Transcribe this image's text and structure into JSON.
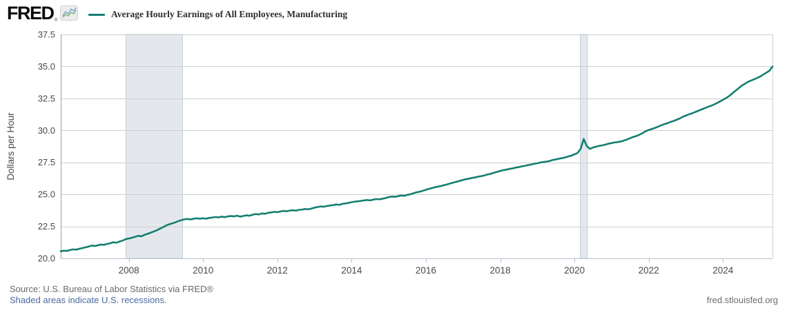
{
  "header": {
    "logo_text": "FRED",
    "registered_mark": "®",
    "legend_label": "Average Hourly Earnings of All Employees, Manufacturing"
  },
  "footer": {
    "source_text": "Source: U.S. Bureau of Labor Statistics via FRED®",
    "recession_note": "Shaded areas indicate U.S. recessions.",
    "site_link": "fred.stlouisfed.org"
  },
  "colors": {
    "line": "#137e70",
    "recession_band_fill": "#e4e8ed",
    "recession_band_edge": "#c7cfd7",
    "gridline": "#cfcfcf",
    "axis": "#b5c0cb",
    "plot_border_left": "#99a1a8",
    "plot_border_right": "#c9d1d8",
    "tick_label": "#45484c",
    "link_blue": "#4d69a1",
    "source_gray": "#66696e"
  },
  "chart_data": {
    "type": "line",
    "title": "Average Hourly Earnings of All Employees, Manufacturing",
    "ylabel": "Dollars per Hour",
    "xlabel": "",
    "legend_entries": [
      "Average Hourly Earnings of All Employees, Manufacturing"
    ],
    "frequency": "monthly",
    "start_month": "2006-03",
    "end_month": "2025-05",
    "x_start_decimal_year": 2006.1667,
    "x_step_decimal_year": 0.0833333,
    "xlim": [
      2006.1667,
      2025.3334
    ],
    "ylim": [
      20.0,
      37.5
    ],
    "y_ticks": [
      "20.0",
      "22.5",
      "25.0",
      "27.5",
      "30.0",
      "32.5",
      "35.0",
      "37.5"
    ],
    "x_ticks": [
      2008,
      2010,
      2012,
      2014,
      2016,
      2018,
      2020,
      2022,
      2024
    ],
    "grid": "horizontal",
    "legend_position": "top-left",
    "recessions": [
      {
        "start": 2007.92,
        "end": 2009.45
      },
      {
        "start": 2020.16,
        "end": 2020.35
      }
    ],
    "values": [
      20.55,
      20.6,
      20.58,
      20.65,
      20.7,
      20.68,
      20.75,
      20.8,
      20.86,
      20.92,
      21.0,
      20.96,
      21.02,
      21.08,
      21.05,
      21.13,
      21.18,
      21.26,
      21.22,
      21.31,
      21.39,
      21.5,
      21.55,
      21.61,
      21.68,
      21.76,
      21.72,
      21.83,
      21.91,
      22.0,
      22.09,
      22.19,
      22.31,
      22.43,
      22.56,
      22.66,
      22.73,
      22.81,
      22.91,
      22.99,
      23.05,
      23.08,
      23.04,
      23.1,
      23.13,
      23.1,
      23.13,
      23.1,
      23.16,
      23.19,
      23.23,
      23.2,
      23.26,
      23.22,
      23.28,
      23.31,
      23.28,
      23.33,
      23.26,
      23.31,
      23.36,
      23.33,
      23.41,
      23.46,
      23.43,
      23.51,
      23.48,
      23.56,
      23.59,
      23.63,
      23.61,
      23.66,
      23.71,
      23.68,
      23.73,
      23.76,
      23.73,
      23.79,
      23.81,
      23.86,
      23.83,
      23.89,
      23.96,
      24.01,
      24.06,
      24.03,
      24.09,
      24.13,
      24.16,
      24.21,
      24.18,
      24.26,
      24.29,
      24.33,
      24.39,
      24.43,
      24.46,
      24.49,
      24.53,
      24.56,
      24.53,
      24.59,
      24.63,
      24.61,
      24.66,
      24.71,
      24.79,
      24.83,
      24.81,
      24.86,
      24.91,
      24.89,
      24.96,
      25.01,
      25.09,
      25.16,
      25.21,
      25.28,
      25.36,
      25.43,
      25.49,
      25.56,
      25.61,
      25.66,
      25.73,
      25.79,
      25.86,
      25.93,
      25.99,
      26.06,
      26.13,
      26.19,
      26.23,
      26.29,
      26.33,
      26.39,
      26.43,
      26.49,
      26.56,
      26.61,
      26.69,
      26.76,
      26.83,
      26.89,
      26.93,
      26.99,
      27.03,
      27.09,
      27.13,
      27.19,
      27.23,
      27.29,
      27.33,
      27.39,
      27.43,
      27.49,
      27.53,
      27.56,
      27.61,
      27.69,
      27.73,
      27.79,
      27.83,
      27.89,
      27.96,
      28.03,
      28.13,
      28.23,
      28.56,
      29.33,
      28.76,
      28.56,
      28.66,
      28.73,
      28.79,
      28.83,
      28.89,
      28.96,
      29.01,
      29.06,
      29.09,
      29.13,
      29.21,
      29.29,
      29.39,
      29.49,
      29.56,
      29.66,
      29.79,
      29.93,
      30.03,
      30.11,
      30.19,
      30.29,
      30.39,
      30.49,
      30.56,
      30.66,
      30.73,
      30.83,
      30.93,
      31.06,
      31.16,
      31.26,
      31.33,
      31.43,
      31.53,
      31.63,
      31.73,
      31.83,
      31.91,
      32.01,
      32.13,
      32.26,
      32.39,
      32.53,
      32.69,
      32.89,
      33.09,
      33.29,
      33.49,
      33.63,
      33.79,
      33.89,
      33.99,
      34.09,
      34.21,
      34.36,
      34.51,
      34.66,
      34.99
    ]
  }
}
